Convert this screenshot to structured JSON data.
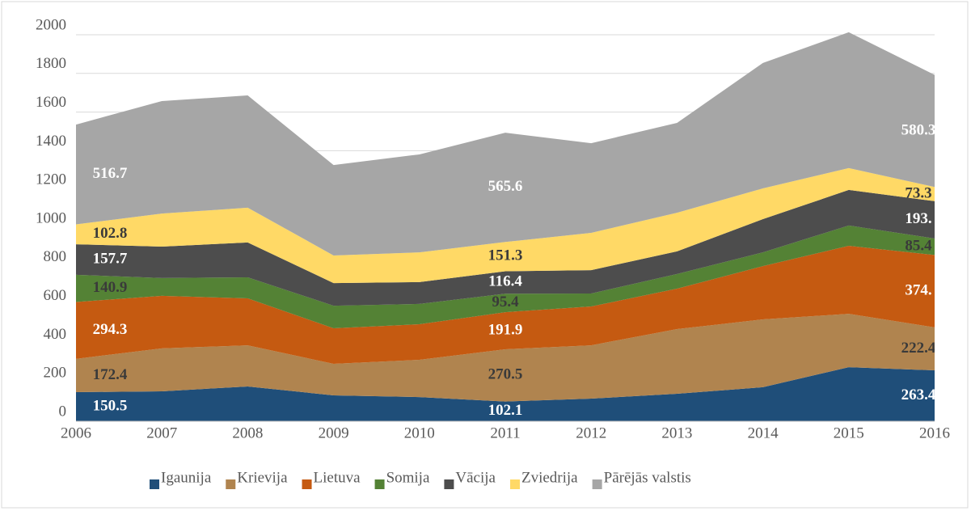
{
  "chart_data": {
    "type": "stacked_area",
    "categories": [
      "2006",
      "2007",
      "2008",
      "2009",
      "2010",
      "2011",
      "2012",
      "2013",
      "2014",
      "2015",
      "2016"
    ],
    "ylim": [
      0,
      2000
    ],
    "yticks": [
      0,
      200,
      400,
      600,
      800,
      1000,
      1200,
      1400,
      1600,
      1800,
      2000
    ],
    "grid": true,
    "legend": "bottom",
    "series": [
      {
        "name": "Igaunija",
        "color": "#1f4e79",
        "label_color": "#ffffff",
        "values": [
          150.5,
          155,
          180,
          134,
          125,
          102.1,
          117,
          142,
          176,
          280,
          263.4
        ],
        "value_labels": [
          "150.5",
          null,
          null,
          null,
          null,
          "102.1",
          null,
          null,
          null,
          null,
          "263.4"
        ]
      },
      {
        "name": "Krievija",
        "color": "#b0844f",
        "label_color": "#3a3a3a",
        "values": [
          172.4,
          222,
          213,
          163,
          193,
          270.5,
          276,
          335,
          351,
          276,
          222.4
        ],
        "value_labels": [
          "172.4",
          null,
          null,
          null,
          null,
          "270.5",
          null,
          null,
          null,
          null,
          "222.4"
        ]
      },
      {
        "name": "Lietuva",
        "color": "#c55a11",
        "label_color": "#ffffff",
        "values": [
          294.3,
          272,
          243,
          184,
          184,
          191.9,
          201,
          209,
          276,
          352,
          374.4
        ],
        "value_labels": [
          "294.3",
          null,
          null,
          null,
          null,
          "191.9",
          null,
          null,
          null,
          null,
          "374."
        ]
      },
      {
        "name": "Somija",
        "color": "#548235",
        "label_color": "#3a3a3a",
        "values": [
          140.9,
          92,
          109,
          117,
          105,
          95.4,
          67,
          76,
          71,
          105,
          85.4
        ],
        "value_labels": [
          "140.9",
          null,
          null,
          null,
          null,
          "95.4",
          null,
          null,
          null,
          null,
          "85.4"
        ]
      },
      {
        "name": "Vācija",
        "color": "#4d4d4d",
        "label_color": "#ffffff",
        "values": [
          157.7,
          163,
          180,
          117,
          113,
          116.4,
          121,
          117,
          172,
          184,
          193.4
        ],
        "value_labels": [
          "157.7",
          null,
          null,
          null,
          null,
          "116.4",
          null,
          null,
          null,
          null,
          "193."
        ]
      },
      {
        "name": "Zviedrija",
        "color": "#ffd966",
        "label_color": "#3a3a3a",
        "values": [
          102.8,
          171,
          180,
          143,
          154,
          151.3,
          193,
          200,
          159,
          113,
          73.3
        ],
        "value_labels": [
          "102.8",
          null,
          null,
          null,
          null,
          "151.3",
          null,
          null,
          null,
          null,
          "73.3"
        ]
      },
      {
        "name": "Pārējās valstis",
        "color": "#a6a6a6",
        "label_color": "#ffffff",
        "values": [
          516.7,
          582,
          581,
          468,
          507,
          565.6,
          464,
          465,
          649,
          703,
          580.3
        ],
        "value_labels": [
          "516.7",
          null,
          null,
          null,
          null,
          "565.6",
          null,
          null,
          null,
          null,
          "580.3"
        ]
      }
    ]
  }
}
